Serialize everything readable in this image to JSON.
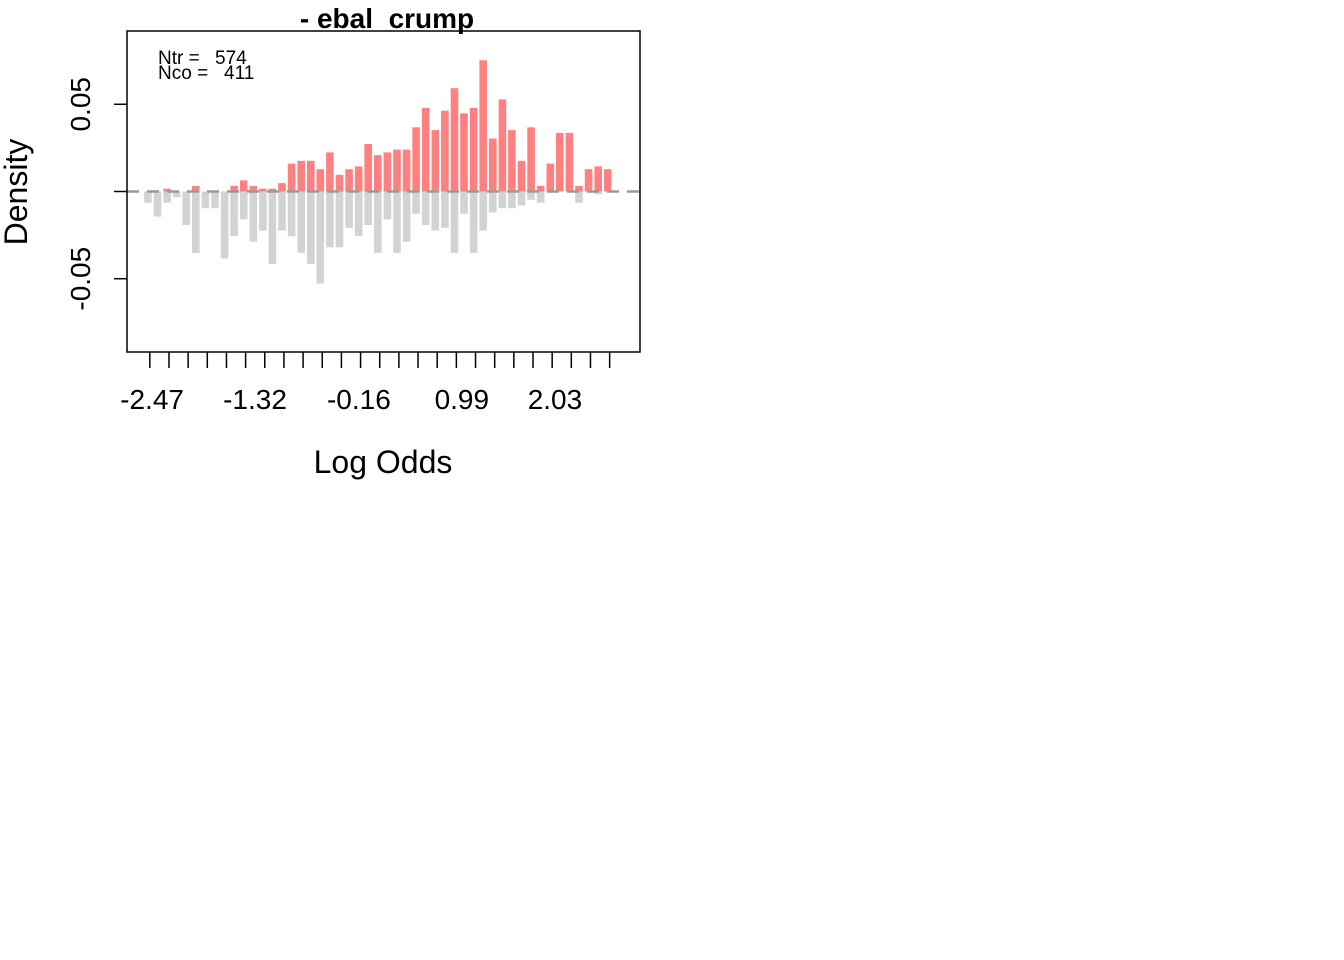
{
  "chart_data": {
    "type": "bar",
    "title": "- ebal_crump",
    "xlabel": "Log Odds",
    "ylabel": "Density",
    "y_ticks": [
      {
        "value": 0.05,
        "label": "0.05"
      },
      {
        "value": 0,
        "label": ""
      },
      {
        "value": -0.05,
        "label": "-0.05"
      }
    ],
    "x_ticks": [
      {
        "value": -2.47,
        "label": "-2.47"
      },
      {
        "value": -1.32,
        "label": "-1.32"
      },
      {
        "value": -0.16,
        "label": "-0.16"
      },
      {
        "value": 0.99,
        "label": "0.99"
      },
      {
        "value": 2.03,
        "label": "2.03"
      }
    ],
    "xlim": [
      -2.75,
      2.98
    ],
    "ylim": [
      -0.092,
      0.092
    ],
    "bin_start": -2.57,
    "bin_width": 0.107,
    "annotations": [
      {
        "label": "Ntr = ",
        "value": "574"
      },
      {
        "label": "Nco = ",
        "value": "411"
      }
    ],
    "series": [
      {
        "name": "",
        "color": "#ff8080",
        "values": [
          0.0,
          0.0,
          0.0016,
          0.0,
          0.0,
          0.0032,
          0.0,
          0.0,
          0.0,
          0.0032,
          0.0064,
          0.0032,
          0.0016,
          0.0016,
          0.0048,
          0.016,
          0.0176,
          0.0176,
          0.0128,
          0.0224,
          0.0096,
          0.0128,
          0.0144,
          0.0272,
          0.0208,
          0.0224,
          0.024,
          0.024,
          0.0368,
          0.048,
          0.0352,
          0.0464,
          0.0592,
          0.0448,
          0.048,
          0.0752,
          0.0304,
          0.0528,
          0.0352,
          0.0176,
          0.0368,
          0.0032,
          0.016,
          0.0336,
          0.0336,
          0.0032,
          0.0128,
          0.0144,
          0.0128
        ]
      },
      {
        "name": "",
        "color": "#d3d3d3",
        "values": [
          0.0064,
          0.0144,
          0.0064,
          0.0032,
          0.0192,
          0.0352,
          0.0096,
          0.0096,
          0.0384,
          0.0256,
          0.016,
          0.0288,
          0.0224,
          0.0416,
          0.0224,
          0.0256,
          0.0352,
          0.0416,
          0.0528,
          0.032,
          0.032,
          0.0208,
          0.0256,
          0.0192,
          0.0352,
          0.016,
          0.0352,
          0.0288,
          0.0128,
          0.0192,
          0.0224,
          0.0208,
          0.0352,
          0.0128,
          0.0352,
          0.0224,
          0.012,
          0.0096,
          0.0096,
          0.008,
          0.0048,
          0.0064,
          0.0,
          0.0,
          0.0,
          0.0064,
          0.0,
          0.0016,
          0.0
        ]
      }
    ]
  }
}
